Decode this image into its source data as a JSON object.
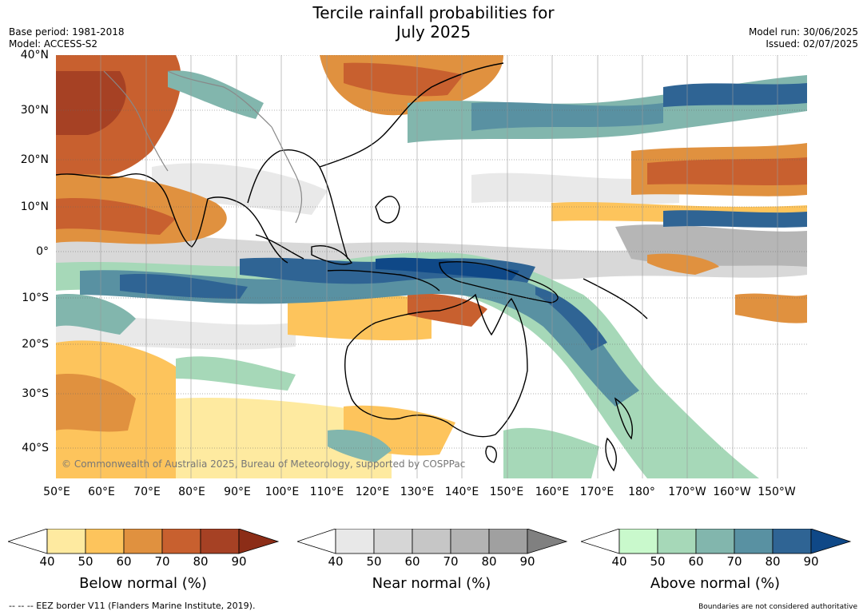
{
  "title_line1": "Tercile rainfall probabilities for",
  "title_line2": "July 2025",
  "base_period": "Base period: 1981-2018",
  "model": "Model: ACCESS-S2",
  "model_run": "Model run: 30/06/2025",
  "issued": "Issued: 02/07/2025",
  "copyright": "© Commonwealth of Australia 2025, Bureau of Meteorology, supported by COSPPac",
  "lat_labels": [
    "40°N",
    "30°N",
    "20°N",
    "10°N",
    "0°",
    "10°S",
    "20°S",
    "30°S",
    "40°S"
  ],
  "lon_labels": [
    "50°E",
    "60°E",
    "70°E",
    "80°E",
    "90°E",
    "100°E",
    "110°E",
    "120°E",
    "130°E",
    "140°E",
    "150°E",
    "160°E",
    "170°E",
    "180°",
    "170°W",
    "160°W",
    "150°W"
  ],
  "colorbars": [
    {
      "label": "Below normal (%)",
      "ticks": [
        "40",
        "50",
        "60",
        "70",
        "80",
        "90"
      ],
      "colors": [
        "#ffffff",
        "#feeaa0",
        "#fdc45c",
        "#e0913f",
        "#c8602f",
        "#a64124",
        "#8c2d17"
      ]
    },
    {
      "label": "Near normal (%)",
      "ticks": [
        "40",
        "50",
        "60",
        "70",
        "80",
        "90"
      ],
      "colors": [
        "#ffffff",
        "#e8e8e8",
        "#d6d6d6",
        "#c6c6c6",
        "#b3b3b3",
        "#a0a0a0",
        "#808080"
      ]
    },
    {
      "label": "Above normal (%)",
      "ticks": [
        "40",
        "50",
        "60",
        "70",
        "80",
        "90"
      ],
      "colors": [
        "#ffffff",
        "#c9f9cc",
        "#a6d8b8",
        "#82b6ad",
        "#5991a2",
        "#2f6494",
        "#0f4887"
      ]
    }
  ],
  "footer_left": "--  --  -- EEZ border V11 (Flanders Marine Institute, 2019).",
  "footer_right": "Boundaries are not considered authoritative"
}
